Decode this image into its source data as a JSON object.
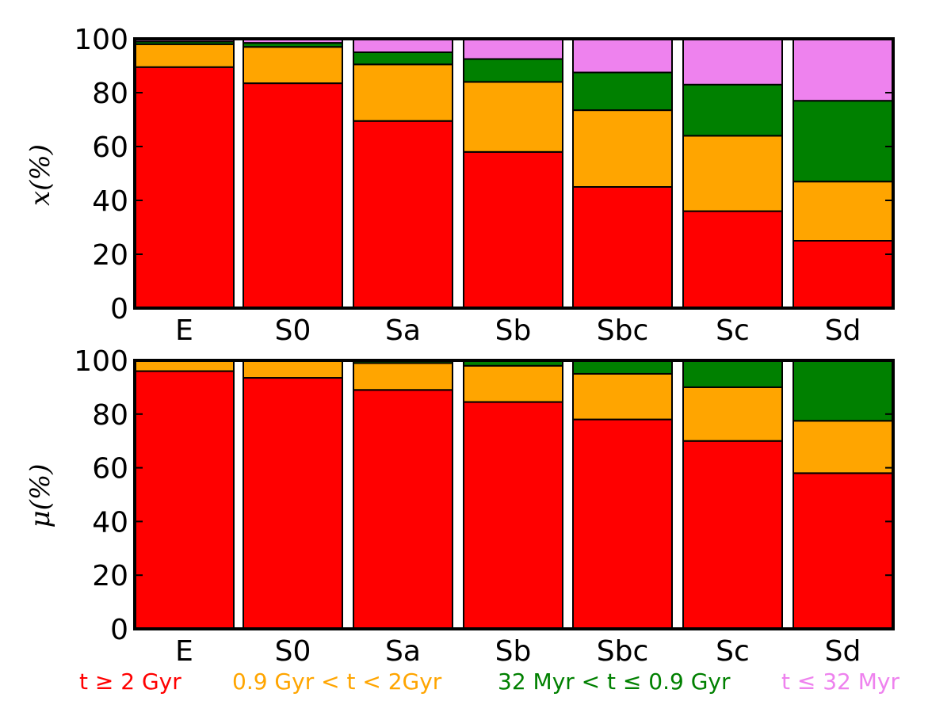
{
  "chart_data": [
    {
      "type": "bar",
      "stacked": true,
      "panel": "top",
      "ylabel": "x(%)",
      "ylim": [
        0,
        100
      ],
      "yticks": [
        "0",
        "20",
        "40",
        "60",
        "80",
        "100"
      ],
      "categories": [
        "E",
        "S0",
        "Sa",
        "Sb",
        "Sbc",
        "Sc",
        "Sd"
      ],
      "series": [
        {
          "name": "t ≥ 2 Gyr",
          "color": "#ff0000",
          "values": [
            89.5,
            83.5,
            69.5,
            58,
            45,
            36,
            25
          ]
        },
        {
          "name": "0.9 Gyr < t < 2Gyr",
          "color": "#ffa500",
          "values": [
            8.5,
            13.5,
            21,
            26,
            28.5,
            28,
            22
          ]
        },
        {
          "name": "32 Myr < t ≤ 0.9 Gyr",
          "color": "#008000",
          "values": [
            1,
            1.5,
            4.5,
            8.5,
            14,
            19,
            30
          ]
        },
        {
          "name": "t ≤ 32 Myr",
          "color": "#ee82ee",
          "values": [
            1,
            1.5,
            5,
            7.5,
            12.5,
            17,
            23
          ]
        }
      ]
    },
    {
      "type": "bar",
      "stacked": true,
      "panel": "bottom",
      "ylabel": "μ(%)",
      "ylim": [
        0,
        100
      ],
      "yticks": [
        "0",
        "20",
        "40",
        "60",
        "80",
        "100"
      ],
      "categories": [
        "E",
        "S0",
        "Sa",
        "Sb",
        "Sbc",
        "Sc",
        "Sd"
      ],
      "series": [
        {
          "name": "t ≥ 2 Gyr",
          "color": "#ff0000",
          "values": [
            96,
            93.5,
            89,
            84.5,
            78,
            70,
            58
          ]
        },
        {
          "name": "0.9 Gyr < t < 2Gyr",
          "color": "#ffa500",
          "values": [
            4,
            6.5,
            10,
            13.5,
            17,
            20,
            19.5
          ]
        },
        {
          "name": "32 Myr < t ≤ 0.9 Gyr",
          "color": "#008000",
          "values": [
            0,
            0,
            1,
            2,
            5,
            10,
            22.5
          ]
        },
        {
          "name": "t ≤ 32 Myr",
          "color": "#ee82ee",
          "values": [
            0,
            0,
            0,
            0,
            0,
            0,
            0
          ]
        }
      ]
    }
  ],
  "legend": [
    {
      "label": "t ≥ 2 Gyr",
      "color": "#ff0000"
    },
    {
      "label": "0.9 Gyr < t <  2Gyr",
      "color": "#ffa500"
    },
    {
      "label": "32 Myr < t ≤  0.9 Gyr",
      "color": "#008000"
    },
    {
      "label": "t ≤ 32 Myr",
      "color": "#ee82ee"
    }
  ]
}
